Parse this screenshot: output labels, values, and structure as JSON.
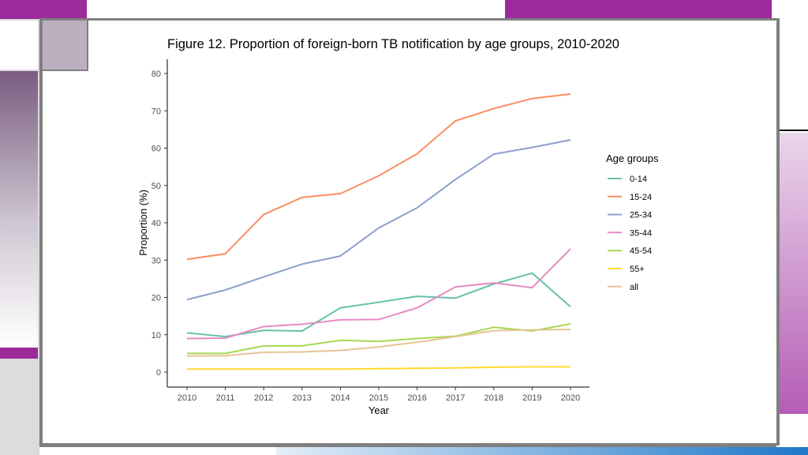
{
  "colors": {
    "accent_purple": "#9b2a9b",
    "frame_gray": "#7f7f7f",
    "mauve": "#bcb0c0",
    "gradient_left_top": "#7a5d80",
    "gradient_right": "#b55db5",
    "bottom_blue": "#1f78c8"
  },
  "chart_data": {
    "type": "line",
    "title": "Figure 12. Proportion of foreign-born TB notification by age groups, 2010-2020",
    "xlabel": "Year",
    "ylabel": "Proportion (%)",
    "ylim": [
      0,
      80
    ],
    "y_ticks": [
      "0",
      "10",
      "20",
      "30",
      "40",
      "50",
      "60",
      "70",
      "80"
    ],
    "x": [
      "2010",
      "2011",
      "2012",
      "2013",
      "2014",
      "2015",
      "2016",
      "2017",
      "2018",
      "2019",
      "2020"
    ],
    "legend_title": "Age groups",
    "legend_position": "right",
    "grid": false,
    "series": [
      {
        "name": "0-14",
        "color": "#66c2a5",
        "values": [
          10.5,
          9.5,
          11.2,
          11.0,
          17.2,
          18.7,
          20.3,
          19.8,
          23.6,
          26.5,
          17.5
        ]
      },
      {
        "name": "15-24",
        "color": "#fc8d62",
        "values": [
          30.2,
          31.7,
          42.2,
          46.8,
          47.8,
          52.6,
          58.5,
          67.3,
          70.6,
          73.3,
          74.5
        ]
      },
      {
        "name": "25-34",
        "color": "#8da0cb",
        "values": [
          19.4,
          22.0,
          25.5,
          28.9,
          31.1,
          38.6,
          44.0,
          51.6,
          58.4,
          60.2,
          62.2
        ]
      },
      {
        "name": "35-44",
        "color": "#e78ac3",
        "values": [
          9.0,
          9.1,
          12.2,
          12.8,
          14.0,
          14.1,
          17.2,
          22.8,
          23.9,
          22.6,
          33.0
        ]
      },
      {
        "name": "45-54",
        "color": "#a6d854",
        "values": [
          5.0,
          5.0,
          7.0,
          7.0,
          8.5,
          8.2,
          9.0,
          9.6,
          12.0,
          11.0,
          12.9
        ]
      },
      {
        "name": "55+",
        "color": "#ffd92f",
        "values": [
          0.8,
          0.8,
          0.8,
          0.8,
          0.8,
          0.9,
          1.0,
          1.1,
          1.3,
          1.4,
          1.4
        ]
      },
      {
        "name": "all",
        "color": "#e5c494",
        "values": [
          4.3,
          4.4,
          5.3,
          5.4,
          5.8,
          6.7,
          8.0,
          9.5,
          11.1,
          11.3,
          11.4
        ]
      }
    ]
  }
}
